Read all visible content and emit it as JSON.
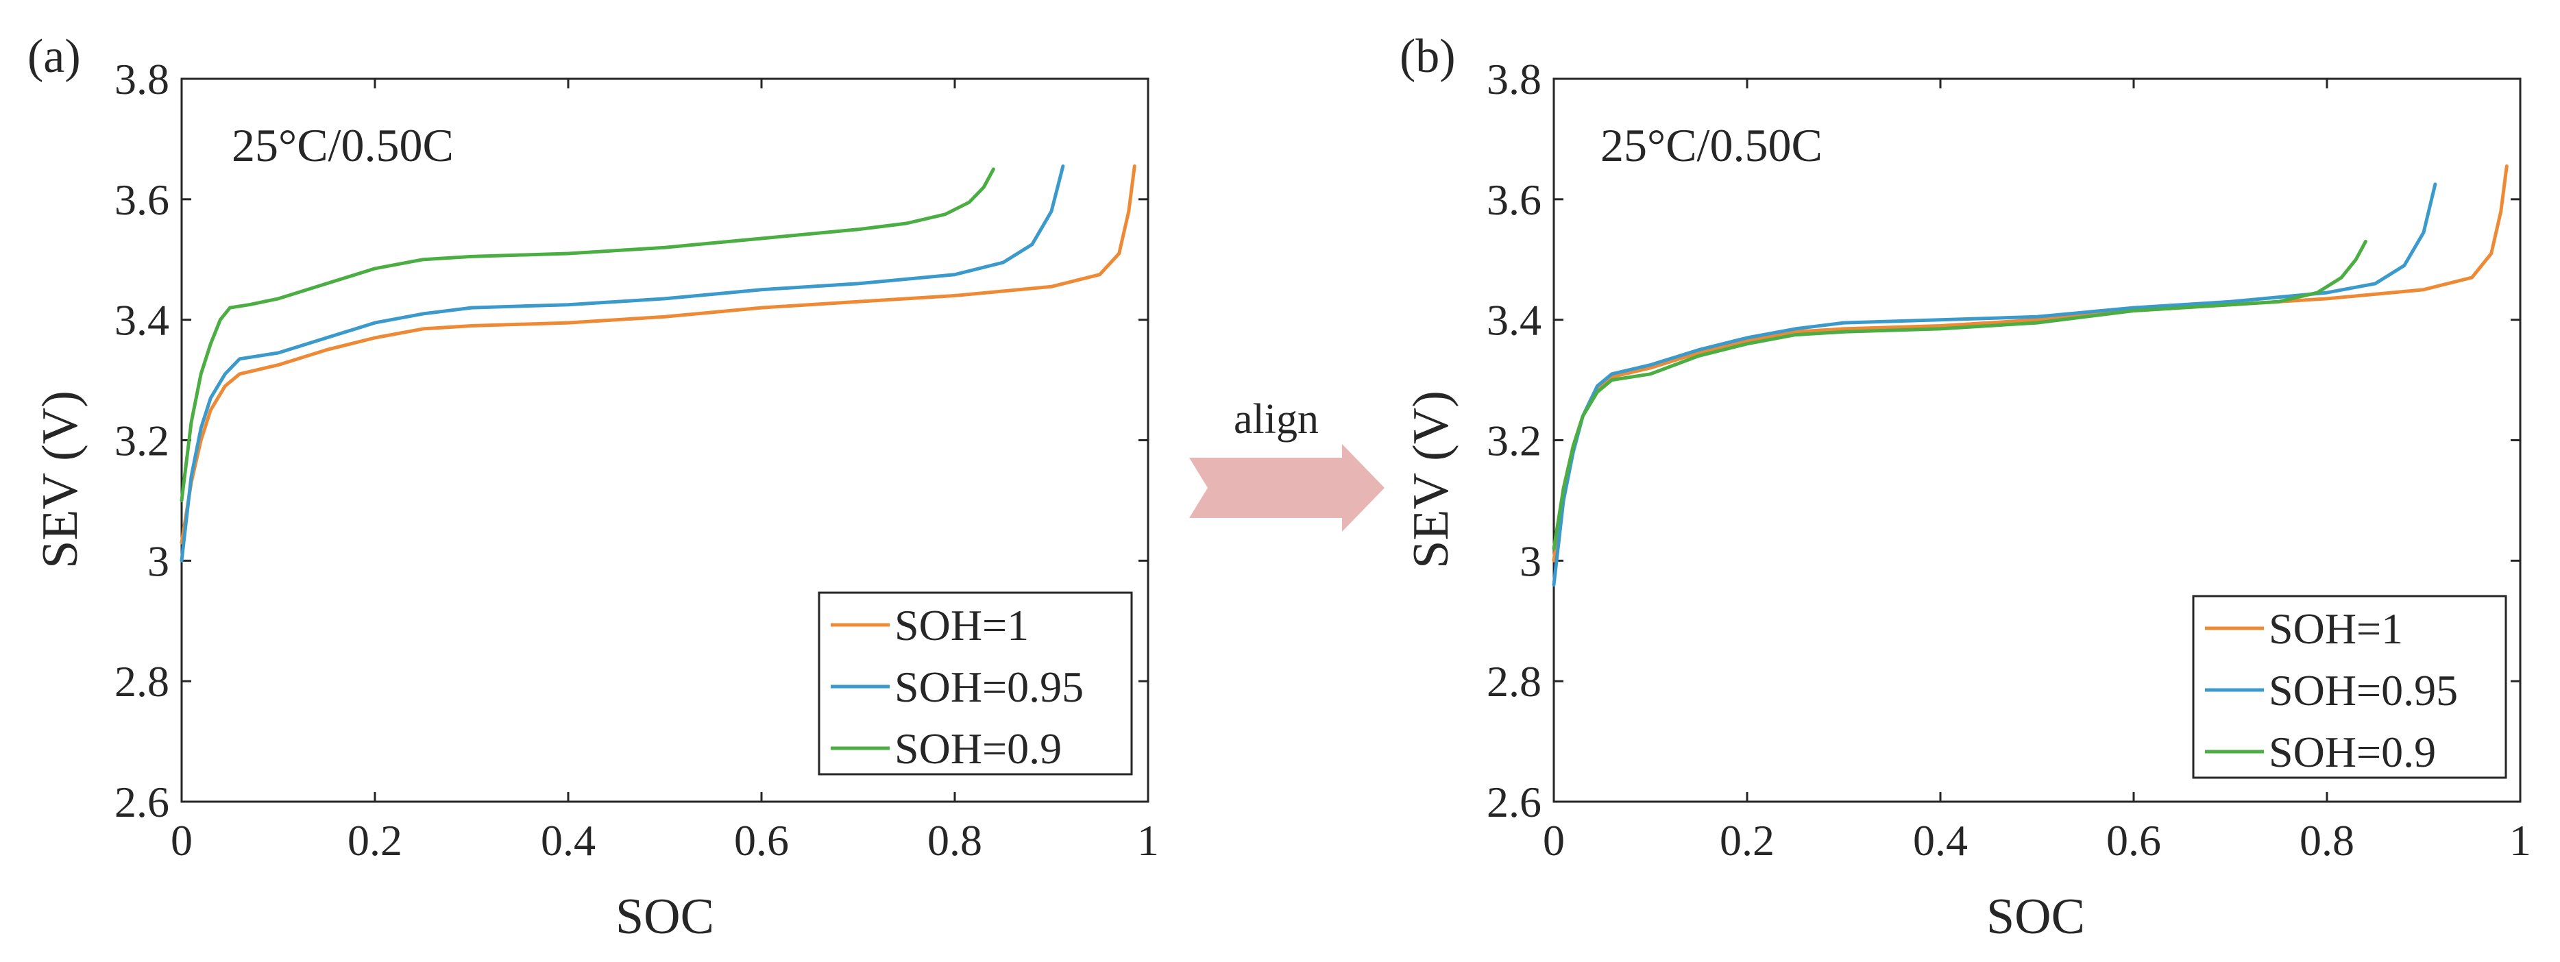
{
  "panels": [
    {
      "panel_label": "(a)",
      "annotation": "25°C/0.50C"
    },
    {
      "panel_label": "(b)",
      "annotation": "25°C/0.50C"
    }
  ],
  "arrow_label": "align",
  "colors": {
    "SOH=1": "#EE8A35",
    "SOH=0.95": "#3A9ACB",
    "SOH=0.9": "#4BAE43",
    "axis": "#262626",
    "arrow": "#E8B5B5"
  },
  "chart_data": [
    {
      "type": "line",
      "title": "",
      "xlabel": "SOC",
      "ylabel": "SEV (V)",
      "xlim": [
        0,
        1
      ],
      "ylim": [
        2.6,
        3.8
      ],
      "xticks": [
        "0",
        "0.2",
        "0.4",
        "0.6",
        "0.8",
        "1"
      ],
      "yticks": [
        "2.6",
        "2.8",
        "3",
        "3.2",
        "3.4",
        "3.6",
        "3.8"
      ],
      "grid": false,
      "legend_position": "bottom-right",
      "series": [
        {
          "name": "SOH=1",
          "x": [
            0,
            0.01,
            0.02,
            0.03,
            0.045,
            0.06,
            0.1,
            0.15,
            0.2,
            0.25,
            0.3,
            0.4,
            0.5,
            0.6,
            0.7,
            0.8,
            0.9,
            0.95,
            0.97,
            0.98,
            0.986
          ],
          "y": [
            3.03,
            3.13,
            3.2,
            3.25,
            3.29,
            3.31,
            3.325,
            3.35,
            3.37,
            3.385,
            3.39,
            3.395,
            3.405,
            3.42,
            3.43,
            3.44,
            3.455,
            3.475,
            3.51,
            3.58,
            3.655
          ]
        },
        {
          "name": "SOH=0.95",
          "x": [
            0,
            0.01,
            0.02,
            0.03,
            0.045,
            0.06,
            0.1,
            0.15,
            0.2,
            0.25,
            0.3,
            0.4,
            0.5,
            0.6,
            0.7,
            0.8,
            0.85,
            0.88,
            0.9,
            0.912
          ],
          "y": [
            3.0,
            3.14,
            3.22,
            3.27,
            3.31,
            3.335,
            3.345,
            3.37,
            3.395,
            3.41,
            3.42,
            3.425,
            3.435,
            3.45,
            3.46,
            3.475,
            3.495,
            3.525,
            3.58,
            3.655
          ]
        },
        {
          "name": "SOH=0.9",
          "x": [
            0,
            0.01,
            0.02,
            0.03,
            0.04,
            0.05,
            0.07,
            0.1,
            0.15,
            0.2,
            0.25,
            0.3,
            0.4,
            0.5,
            0.6,
            0.7,
            0.75,
            0.79,
            0.815,
            0.83,
            0.84
          ],
          "y": [
            3.1,
            3.23,
            3.31,
            3.36,
            3.4,
            3.42,
            3.425,
            3.435,
            3.46,
            3.485,
            3.5,
            3.505,
            3.51,
            3.52,
            3.535,
            3.55,
            3.56,
            3.575,
            3.595,
            3.62,
            3.65
          ]
        }
      ]
    },
    {
      "type": "line",
      "title": "",
      "xlabel": "SOC",
      "ylabel": "SEV (V)",
      "xlim": [
        0,
        1
      ],
      "ylim": [
        2.6,
        3.8
      ],
      "xticks": [
        "0",
        "0.2",
        "0.4",
        "0.6",
        "0.8",
        "1"
      ],
      "yticks": [
        "2.6",
        "2.8",
        "3",
        "3.2",
        "3.4",
        "3.6",
        "3.8"
      ],
      "grid": false,
      "legend_position": "bottom-right",
      "series": [
        {
          "name": "SOH=1",
          "x": [
            0,
            0.01,
            0.02,
            0.03,
            0.045,
            0.06,
            0.1,
            0.15,
            0.2,
            0.25,
            0.3,
            0.4,
            0.5,
            0.6,
            0.7,
            0.8,
            0.9,
            0.95,
            0.97,
            0.98,
            0.986
          ],
          "y": [
            3.0,
            3.12,
            3.19,
            3.24,
            3.285,
            3.305,
            3.32,
            3.345,
            3.365,
            3.38,
            3.385,
            3.39,
            3.4,
            3.415,
            3.425,
            3.435,
            3.45,
            3.47,
            3.51,
            3.58,
            3.655
          ]
        },
        {
          "name": "SOH=0.95",
          "x": [
            0,
            0.01,
            0.02,
            0.03,
            0.045,
            0.06,
            0.1,
            0.15,
            0.2,
            0.25,
            0.3,
            0.4,
            0.5,
            0.6,
            0.7,
            0.8,
            0.85,
            0.88,
            0.9,
            0.912
          ],
          "y": [
            2.96,
            3.1,
            3.18,
            3.24,
            3.29,
            3.31,
            3.325,
            3.35,
            3.37,
            3.385,
            3.395,
            3.4,
            3.405,
            3.42,
            3.43,
            3.445,
            3.46,
            3.49,
            3.545,
            3.625
          ]
        },
        {
          "name": "SOH=0.9",
          "x": [
            0,
            0.01,
            0.02,
            0.03,
            0.045,
            0.06,
            0.1,
            0.15,
            0.2,
            0.25,
            0.3,
            0.4,
            0.5,
            0.6,
            0.7,
            0.75,
            0.79,
            0.815,
            0.83,
            0.84
          ],
          "y": [
            3.02,
            3.12,
            3.19,
            3.24,
            3.28,
            3.3,
            3.31,
            3.34,
            3.36,
            3.375,
            3.38,
            3.385,
            3.395,
            3.415,
            3.425,
            3.43,
            3.445,
            3.47,
            3.5,
            3.53
          ]
        }
      ]
    }
  ]
}
